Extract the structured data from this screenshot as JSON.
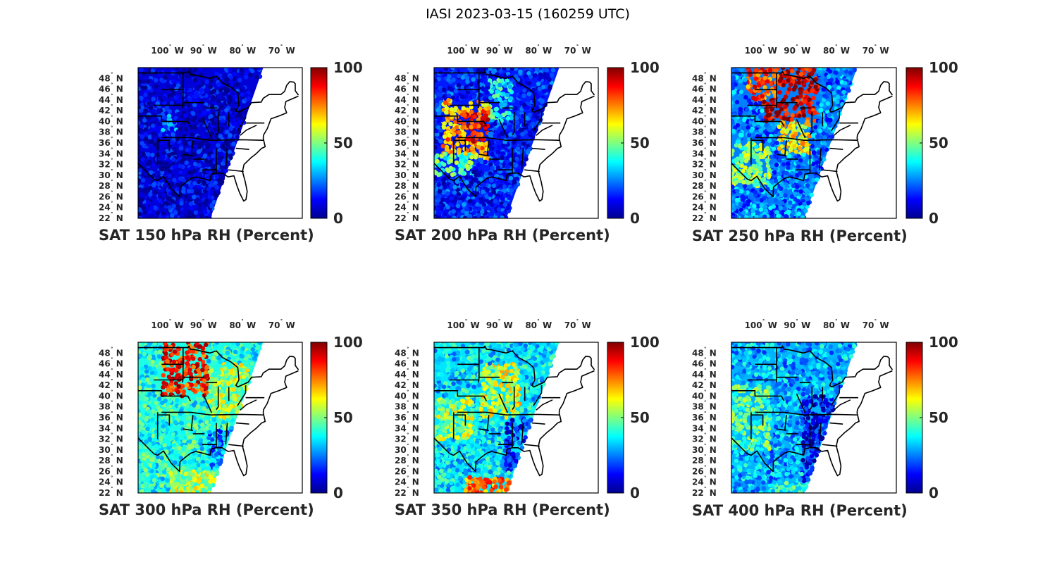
{
  "figure": {
    "title": "IASI 2023-03-15 (160259 UTC)"
  },
  "colors": {
    "background": "#ffffff",
    "frame": "#000000",
    "text": "#262626",
    "colormap": [
      "#00008f",
      "#0000ff",
      "#0080ff",
      "#00ffff",
      "#80ff80",
      "#ffff00",
      "#ff8000",
      "#ff0000",
      "#800000"
    ]
  },
  "chart_data": [
    {
      "type": "map-scatter",
      "title": "SAT 150 hPa RH (Percent)",
      "variable": "RH",
      "units": "Percent",
      "pressure_hpa": 150,
      "xlim": [
        -108,
        -66
      ],
      "ylim": [
        22,
        50
      ],
      "lon_ticks": [
        {
          "deg": "100",
          "dir": "W",
          "value": -100
        },
        {
          "deg": "90",
          "dir": "W",
          "value": -90
        },
        {
          "deg": "80",
          "dir": "W",
          "value": -80
        },
        {
          "deg": "70",
          "dir": "W",
          "value": -70
        }
      ],
      "lat_ticks": [
        {
          "deg": "48",
          "dir": "N",
          "value": 48
        },
        {
          "deg": "46",
          "dir": "N",
          "value": 46
        },
        {
          "deg": "44",
          "dir": "N",
          "value": 44
        },
        {
          "deg": "42",
          "dir": "N",
          "value": 42
        },
        {
          "deg": "40",
          "dir": "N",
          "value": 40
        },
        {
          "deg": "38",
          "dir": "N",
          "value": 38
        },
        {
          "deg": "36",
          "dir": "N",
          "value": 36
        },
        {
          "deg": "34",
          "dir": "N",
          "value": 34
        },
        {
          "deg": "32",
          "dir": "N",
          "value": 32
        },
        {
          "deg": "30",
          "dir": "N",
          "value": 30
        },
        {
          "deg": "28",
          "dir": "N",
          "value": 28
        },
        {
          "deg": "26",
          "dir": "N",
          "value": 26
        },
        {
          "deg": "24",
          "dir": "N",
          "value": 24
        },
        {
          "deg": "22",
          "dir": "N",
          "value": 22
        }
      ],
      "colorbar": {
        "min": 0,
        "max": 100,
        "ticks": [
          {
            "label": "100",
            "value": 100
          },
          {
            "label": "50",
            "value": 50
          },
          {
            "label": "0",
            "value": 0
          }
        ]
      },
      "field_regions": [
        {
          "lon": [
            -108,
            -60
          ],
          "lat": [
            22,
            50
          ],
          "rh": 8
        },
        {
          "lon": [
            -102,
            -98
          ],
          "lat": [
            38,
            42
          ],
          "rh": 22
        }
      ]
    },
    {
      "type": "map-scatter",
      "title": "SAT 200 hPa RH (Percent)",
      "variable": "RH",
      "units": "Percent",
      "pressure_hpa": 200,
      "xlim": [
        -108,
        -66
      ],
      "ylim": [
        22,
        50
      ],
      "lon_ticks": [
        {
          "deg": "100",
          "dir": "W",
          "value": -100
        },
        {
          "deg": "90",
          "dir": "W",
          "value": -90
        },
        {
          "deg": "80",
          "dir": "W",
          "value": -80
        },
        {
          "deg": "70",
          "dir": "W",
          "value": -70
        }
      ],
      "lat_ticks": [
        {
          "deg": "48",
          "dir": "N",
          "value": 48
        },
        {
          "deg": "46",
          "dir": "N",
          "value": 46
        },
        {
          "deg": "44",
          "dir": "N",
          "value": 44
        },
        {
          "deg": "42",
          "dir": "N",
          "value": 42
        },
        {
          "deg": "40",
          "dir": "N",
          "value": 40
        },
        {
          "deg": "38",
          "dir": "N",
          "value": 38
        },
        {
          "deg": "36",
          "dir": "N",
          "value": 36
        },
        {
          "deg": "34",
          "dir": "N",
          "value": 34
        },
        {
          "deg": "32",
          "dir": "N",
          "value": 32
        },
        {
          "deg": "30",
          "dir": "N",
          "value": 30
        },
        {
          "deg": "28",
          "dir": "N",
          "value": 28
        },
        {
          "deg": "26",
          "dir": "N",
          "value": 26
        },
        {
          "deg": "24",
          "dir": "N",
          "value": 24
        },
        {
          "deg": "22",
          "dir": "N",
          "value": 22
        }
      ],
      "colorbar": {
        "min": 0,
        "max": 100,
        "ticks": [
          {
            "label": "100",
            "value": 100
          },
          {
            "label": "50",
            "value": 50
          },
          {
            "label": "0",
            "value": 0
          }
        ]
      },
      "field_regions": [
        {
          "lon": [
            -108,
            -60
          ],
          "lat": [
            22,
            50
          ],
          "rh": 15
        },
        {
          "lon": [
            -106,
            -94
          ],
          "lat": [
            33,
            44
          ],
          "rh": 70
        },
        {
          "lon": [
            -100,
            -94
          ],
          "lat": [
            36,
            42
          ],
          "rh": 85
        },
        {
          "lon": [
            -94,
            -88
          ],
          "lat": [
            40,
            48
          ],
          "rh": 40
        },
        {
          "lon": [
            -108,
            -98
          ],
          "lat": [
            30,
            34
          ],
          "rh": 45
        }
      ]
    },
    {
      "type": "map-scatter",
      "title": "SAT 250 hPa RH (Percent)",
      "variable": "RH",
      "units": "Percent",
      "pressure_hpa": 250,
      "xlim": [
        -108,
        -66
      ],
      "ylim": [
        22,
        50
      ],
      "lon_ticks": [
        {
          "deg": "100",
          "dir": "W",
          "value": -100
        },
        {
          "deg": "90",
          "dir": "W",
          "value": -90
        },
        {
          "deg": "80",
          "dir": "W",
          "value": -80
        },
        {
          "deg": "70",
          "dir": "W",
          "value": -70
        }
      ],
      "lat_ticks": [
        {
          "deg": "48",
          "dir": "N",
          "value": 48
        },
        {
          "deg": "46",
          "dir": "N",
          "value": 46
        },
        {
          "deg": "44",
          "dir": "N",
          "value": 44
        },
        {
          "deg": "42",
          "dir": "N",
          "value": 42
        },
        {
          "deg": "40",
          "dir": "N",
          "value": 40
        },
        {
          "deg": "38",
          "dir": "N",
          "value": 38
        },
        {
          "deg": "36",
          "dir": "N",
          "value": 36
        },
        {
          "deg": "34",
          "dir": "N",
          "value": 34
        },
        {
          "deg": "32",
          "dir": "N",
          "value": 32
        },
        {
          "deg": "30",
          "dir": "N",
          "value": 30
        },
        {
          "deg": "28",
          "dir": "N",
          "value": 28
        },
        {
          "deg": "26",
          "dir": "N",
          "value": 26
        },
        {
          "deg": "24",
          "dir": "N",
          "value": 24
        },
        {
          "deg": "22",
          "dir": "N",
          "value": 22
        }
      ],
      "colorbar": {
        "min": 0,
        "max": 100,
        "ticks": [
          {
            "label": "100",
            "value": 100
          },
          {
            "label": "50",
            "value": 50
          },
          {
            "label": "0",
            "value": 0
          }
        ]
      },
      "field_regions": [
        {
          "lon": [
            -108,
            -60
          ],
          "lat": [
            22,
            50
          ],
          "rh": 25
        },
        {
          "lon": [
            -100,
            -86
          ],
          "lat": [
            40,
            50
          ],
          "rh": 92
        },
        {
          "lon": [
            -104,
            -96
          ],
          "lat": [
            44,
            50
          ],
          "rh": 80
        },
        {
          "lon": [
            -108,
            -98
          ],
          "lat": [
            28,
            36
          ],
          "rh": 50
        },
        {
          "lon": [
            -96,
            -88
          ],
          "lat": [
            34,
            40
          ],
          "rh": 65
        }
      ]
    },
    {
      "type": "map-scatter",
      "title": "SAT 300 hPa RH (Percent)",
      "variable": "RH",
      "units": "Percent",
      "pressure_hpa": 300,
      "xlim": [
        -108,
        -66
      ],
      "ylim": [
        22,
        50
      ],
      "lon_ticks": [
        {
          "deg": "100",
          "dir": "W",
          "value": -100
        },
        {
          "deg": "90",
          "dir": "W",
          "value": -90
        },
        {
          "deg": "80",
          "dir": "W",
          "value": -80
        },
        {
          "deg": "70",
          "dir": "W",
          "value": -70
        }
      ],
      "lat_ticks": [
        {
          "deg": "48",
          "dir": "N",
          "value": 48
        },
        {
          "deg": "46",
          "dir": "N",
          "value": 46
        },
        {
          "deg": "44",
          "dir": "N",
          "value": 44
        },
        {
          "deg": "42",
          "dir": "N",
          "value": 42
        },
        {
          "deg": "40",
          "dir": "N",
          "value": 40
        },
        {
          "deg": "38",
          "dir": "N",
          "value": 38
        },
        {
          "deg": "36",
          "dir": "N",
          "value": 36
        },
        {
          "deg": "34",
          "dir": "N",
          "value": 34
        },
        {
          "deg": "32",
          "dir": "N",
          "value": 32
        },
        {
          "deg": "30",
          "dir": "N",
          "value": 30
        },
        {
          "deg": "28",
          "dir": "N",
          "value": 28
        },
        {
          "deg": "26",
          "dir": "N",
          "value": 26
        },
        {
          "deg": "24",
          "dir": "N",
          "value": 24
        },
        {
          "deg": "22",
          "dir": "N",
          "value": 22
        }
      ],
      "colorbar": {
        "min": 0,
        "max": 100,
        "ticks": [
          {
            "label": "100",
            "value": 100
          },
          {
            "label": "50",
            "value": 50
          },
          {
            "label": "0",
            "value": 0
          }
        ]
      },
      "field_regions": [
        {
          "lon": [
            -108,
            -60
          ],
          "lat": [
            22,
            50
          ],
          "rh": 40
        },
        {
          "lon": [
            -102,
            -90
          ],
          "lat": [
            40,
            50
          ],
          "rh": 85
        },
        {
          "lon": [
            -90,
            -80
          ],
          "lat": [
            36,
            46
          ],
          "rh": 55
        },
        {
          "lon": [
            -100,
            -86
          ],
          "lat": [
            22,
            26
          ],
          "rh": 55
        },
        {
          "lon": [
            -90,
            -76
          ],
          "lat": [
            26,
            34
          ],
          "rh": 25
        }
      ]
    },
    {
      "type": "map-scatter",
      "title": "SAT 350 hPa RH (Percent)",
      "variable": "RH",
      "units": "Percent",
      "pressure_hpa": 350,
      "xlim": [
        -108,
        -66
      ],
      "ylim": [
        22,
        50
      ],
      "lon_ticks": [
        {
          "deg": "100",
          "dir": "W",
          "value": -100
        },
        {
          "deg": "90",
          "dir": "W",
          "value": -90
        },
        {
          "deg": "80",
          "dir": "W",
          "value": -80
        },
        {
          "deg": "70",
          "dir": "W",
          "value": -70
        }
      ],
      "lat_ticks": [
        {
          "deg": "48",
          "dir": "N",
          "value": 48
        },
        {
          "deg": "46",
          "dir": "N",
          "value": 46
        },
        {
          "deg": "44",
          "dir": "N",
          "value": 44
        },
        {
          "deg": "42",
          "dir": "N",
          "value": 42
        },
        {
          "deg": "40",
          "dir": "N",
          "value": 40
        },
        {
          "deg": "38",
          "dir": "N",
          "value": 38
        },
        {
          "deg": "36",
          "dir": "N",
          "value": 36
        },
        {
          "deg": "34",
          "dir": "N",
          "value": 34
        },
        {
          "deg": "32",
          "dir": "N",
          "value": 32
        },
        {
          "deg": "30",
          "dir": "N",
          "value": 30
        },
        {
          "deg": "28",
          "dir": "N",
          "value": 28
        },
        {
          "deg": "26",
          "dir": "N",
          "value": 26
        },
        {
          "deg": "24",
          "dir": "N",
          "value": 24
        },
        {
          "deg": "22",
          "dir": "N",
          "value": 22
        }
      ],
      "colorbar": {
        "min": 0,
        "max": 100,
        "ticks": [
          {
            "label": "100",
            "value": 100
          },
          {
            "label": "50",
            "value": 50
          },
          {
            "label": "0",
            "value": 0
          }
        ]
      },
      "field_regions": [
        {
          "lon": [
            -108,
            -60
          ],
          "lat": [
            22,
            50
          ],
          "rh": 35
        },
        {
          "lon": [
            -96,
            -86
          ],
          "lat": [
            36,
            46
          ],
          "rh": 60
        },
        {
          "lon": [
            -100,
            -84
          ],
          "lat": [
            22,
            25
          ],
          "rh": 75
        },
        {
          "lon": [
            -90,
            -76
          ],
          "lat": [
            26,
            36
          ],
          "rh": 15
        },
        {
          "lon": [
            -108,
            -98
          ],
          "lat": [
            32,
            40
          ],
          "rh": 55
        }
      ]
    },
    {
      "type": "map-scatter",
      "title": "SAT 400 hPa RH (Percent)",
      "variable": "RH",
      "units": "Percent",
      "pressure_hpa": 400,
      "xlim": [
        -108,
        -66
      ],
      "ylim": [
        22,
        50
      ],
      "lon_ticks": [
        {
          "deg": "100",
          "dir": "W",
          "value": -100
        },
        {
          "deg": "90",
          "dir": "W",
          "value": -90
        },
        {
          "deg": "80",
          "dir": "W",
          "value": -80
        },
        {
          "deg": "70",
          "dir": "W",
          "value": -70
        }
      ],
      "lat_ticks": [
        {
          "deg": "48",
          "dir": "N",
          "value": 48
        },
        {
          "deg": "46",
          "dir": "N",
          "value": 46
        },
        {
          "deg": "44",
          "dir": "N",
          "value": 44
        },
        {
          "deg": "42",
          "dir": "N",
          "value": 42
        },
        {
          "deg": "40",
          "dir": "N",
          "value": 40
        },
        {
          "deg": "38",
          "dir": "N",
          "value": 38
        },
        {
          "deg": "36",
          "dir": "N",
          "value": 36
        },
        {
          "deg": "34",
          "dir": "N",
          "value": 34
        },
        {
          "deg": "32",
          "dir": "N",
          "value": 32
        },
        {
          "deg": "30",
          "dir": "N",
          "value": 30
        },
        {
          "deg": "28",
          "dir": "N",
          "value": 28
        },
        {
          "deg": "26",
          "dir": "N",
          "value": 26
        },
        {
          "deg": "24",
          "dir": "N",
          "value": 24
        },
        {
          "deg": "22",
          "dir": "N",
          "value": 22
        }
      ],
      "colorbar": {
        "min": 0,
        "max": 100,
        "ticks": [
          {
            "label": "100",
            "value": 100
          },
          {
            "label": "50",
            "value": 50
          },
          {
            "label": "0",
            "value": 0
          }
        ]
      },
      "field_regions": [
        {
          "lon": [
            -108,
            -60
          ],
          "lat": [
            22,
            50
          ],
          "rh": 30
        },
        {
          "lon": [
            -90,
            -76
          ],
          "lat": [
            24,
            40
          ],
          "rh": 10
        },
        {
          "lon": [
            -108,
            -98
          ],
          "lat": [
            30,
            42
          ],
          "rh": 45
        },
        {
          "lon": [
            -98,
            -86
          ],
          "lat": [
            22,
            24
          ],
          "rh": 40
        }
      ]
    }
  ]
}
